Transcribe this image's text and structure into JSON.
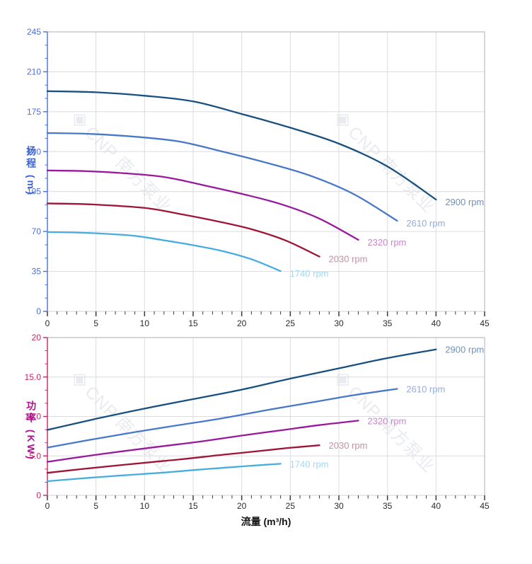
{
  "watermark": {
    "logo": "◈",
    "text": "CNP 南方泵业",
    "color": "#e9ebf0"
  },
  "flow_axis": {
    "title": "流量 (m³/h)",
    "min": 0,
    "max": 45,
    "major": 5,
    "minor": 1,
    "tick_labels": [
      "0",
      "5",
      "10",
      "15",
      "20",
      "25",
      "30",
      "35",
      "40",
      "45"
    ],
    "line_color": "#d9d9dd",
    "tick_color": "#3a3a3a",
    "label_color": "#2b2b2b"
  },
  "chart_data": [
    {
      "type": "line",
      "name": "head-curve-chart",
      "title": "",
      "xlabel": "流量 (m³/h)",
      "ylabel": "扬程 (m)",
      "xlim": [
        0,
        45
      ],
      "ylim": [
        0,
        245
      ],
      "grid": true,
      "legend_position": "end-of-line-labels",
      "y_axis": {
        "title": "扬程 (m)",
        "min": 0,
        "max": 245,
        "major": 35,
        "tick_labels": [
          "0",
          "35",
          "70",
          "105",
          "140",
          "175",
          "210",
          "245"
        ],
        "color": "#4a6fd8"
      },
      "series": [
        {
          "label": "2900 rpm",
          "color": "#19507f",
          "label_color": "#6f92b8",
          "points": [
            [
              0,
              193
            ],
            [
              5,
              192
            ],
            [
              10,
              189
            ],
            [
              15,
              184
            ],
            [
              20,
              173
            ],
            [
              25,
              161
            ],
            [
              30,
              147
            ],
            [
              35,
              127
            ],
            [
              40,
              98
            ]
          ]
        },
        {
          "label": "2610 rpm",
          "color": "#4878ca",
          "label_color": "#93acdf",
          "points": [
            [
              0,
              156.3
            ],
            [
              4.5,
              155.5
            ],
            [
              9,
              153.1
            ],
            [
              13.5,
              149
            ],
            [
              18,
              140.1
            ],
            [
              22.5,
              130.4
            ],
            [
              27,
              119.1
            ],
            [
              31.5,
              102.9
            ],
            [
              36,
              79.4
            ]
          ]
        },
        {
          "label": "2320 rpm",
          "color": "#99199e",
          "label_color": "#c887cd",
          "points": [
            [
              0,
              123.5
            ],
            [
              4,
              122.9
            ],
            [
              8,
              121
            ],
            [
              12,
              117.8
            ],
            [
              16,
              110.7
            ],
            [
              20,
              103
            ],
            [
              24,
              94.1
            ],
            [
              28,
              81.3
            ],
            [
              32,
              62.7
            ]
          ]
        },
        {
          "label": "2030 rpm",
          "color": "#9e1536",
          "label_color": "#c5929f",
          "points": [
            [
              0,
              94.6
            ],
            [
              3.5,
              94.1
            ],
            [
              7,
              92.6
            ],
            [
              10.5,
              90.2
            ],
            [
              14,
              84.8
            ],
            [
              17.5,
              78.9
            ],
            [
              21,
              72
            ],
            [
              24.5,
              62.2
            ],
            [
              28,
              48
            ]
          ]
        },
        {
          "label": "1740 rpm",
          "color": "#47ade1",
          "label_color": "#a3d7f3",
          "points": [
            [
              0,
              69.5
            ],
            [
              3,
              69.1
            ],
            [
              6,
              68
            ],
            [
              9,
              66.2
            ],
            [
              12,
              62.3
            ],
            [
              15,
              58
            ],
            [
              18,
              52.9
            ],
            [
              21,
              45.7
            ],
            [
              24,
              35.3
            ]
          ]
        }
      ]
    },
    {
      "type": "line",
      "name": "power-curve-chart",
      "title": "",
      "xlabel": "流量 (m³/h)",
      "ylabel": "功率 (KW)",
      "xlim": [
        0,
        45
      ],
      "ylim": [
        0,
        20
      ],
      "grid": true,
      "legend_position": "end-of-line-labels",
      "y_axis": {
        "title": "功率 (KW)",
        "min": 0,
        "max": 20,
        "major": 5,
        "tick_labels": [
          "0",
          "5.0",
          "10.0",
          "15.0",
          "20"
        ],
        "color": "#c02866"
      },
      "series": [
        {
          "label": "2900 rpm",
          "color": "#19507f",
          "label_color": "#6f92b8",
          "points": [
            [
              0,
              8.3
            ],
            [
              5,
              9.7
            ],
            [
              10,
              11.0
            ],
            [
              15,
              12.2
            ],
            [
              20,
              13.4
            ],
            [
              25,
              14.8
            ],
            [
              30,
              16.1
            ],
            [
              35,
              17.4
            ],
            [
              40,
              18.5
            ]
          ]
        },
        {
          "label": "2610 rpm",
          "color": "#4878ca",
          "label_color": "#93acdf",
          "points": [
            [
              0,
              6.05
            ],
            [
              4.5,
              7.07
            ],
            [
              9,
              8.02
            ],
            [
              13.5,
              8.9
            ],
            [
              18,
              9.77
            ],
            [
              22.5,
              10.79
            ],
            [
              27,
              11.74
            ],
            [
              31.5,
              12.69
            ],
            [
              36,
              13.5
            ]
          ]
        },
        {
          "label": "2320 rpm",
          "color": "#99199e",
          "label_color": "#c887cd",
          "points": [
            [
              0,
              4.25
            ],
            [
              4,
              4.97
            ],
            [
              8,
              5.63
            ],
            [
              12,
              6.25
            ],
            [
              16,
              6.86
            ],
            [
              20,
              7.58
            ],
            [
              24,
              8.24
            ],
            [
              28,
              8.91
            ],
            [
              32,
              9.47
            ]
          ]
        },
        {
          "label": "2030 rpm",
          "color": "#9e1536",
          "label_color": "#c5929f",
          "points": [
            [
              0,
              2.85
            ],
            [
              3.5,
              3.33
            ],
            [
              7,
              3.77
            ],
            [
              10.5,
              4.19
            ],
            [
              14,
              4.6
            ],
            [
              17.5,
              5.08
            ],
            [
              21,
              5.52
            ],
            [
              24.5,
              5.97
            ],
            [
              28,
              6.35
            ]
          ]
        },
        {
          "label": "1740 rpm",
          "color": "#47ade1",
          "label_color": "#a3d7f3",
          "points": [
            [
              0,
              1.79
            ],
            [
              3,
              2.1
            ],
            [
              6,
              2.38
            ],
            [
              9,
              2.64
            ],
            [
              12,
              2.89
            ],
            [
              15,
              3.2
            ],
            [
              18,
              3.48
            ],
            [
              21,
              3.76
            ],
            [
              24,
              4.0
            ]
          ]
        }
      ]
    }
  ],
  "style": {
    "grid_color": "#dcdce0",
    "border_color": "#c6c8cc",
    "background": "#ffffff"
  }
}
